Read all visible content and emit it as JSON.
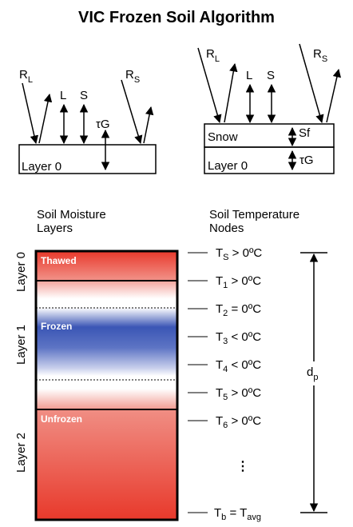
{
  "title": "VIC Frozen Soil Algorithm",
  "top_left_panel": {
    "flux_rl": {
      "base": "R",
      "sub": "L"
    },
    "flux_rs": {
      "base": "R",
      "sub": "S"
    },
    "flux_l": "L",
    "flux_s": "S",
    "flux_tg": "τG",
    "layer_label": "Layer 0"
  },
  "top_right_panel": {
    "flux_rl": {
      "base": "R",
      "sub": "L"
    },
    "flux_rs": {
      "base": "R",
      "sub": "S"
    },
    "flux_l": "L",
    "flux_s": "S",
    "snow_label": "Snow",
    "sf_label": "Sf",
    "layer_label": "Layer 0",
    "flux_tg": "τG"
  },
  "soil_column": {
    "heading_line1": "Soil Moisture",
    "heading_line2": "Layers",
    "layer_labels": [
      "Layer 0",
      "Layer 1",
      "Layer 2"
    ],
    "state_labels": [
      "Thawed",
      "Frozen",
      "Unfrozen"
    ]
  },
  "temperature_nodes": {
    "heading_line1": "Soil Temperature",
    "heading_line2": "Nodes",
    "nodes": [
      {
        "t": "T",
        "sub": "S",
        "rel": " > 0ºC"
      },
      {
        "t": "T",
        "sub": "1",
        "rel": " > 0ºC"
      },
      {
        "t": "T",
        "sub": "2",
        "rel": " = 0ºC"
      },
      {
        "t": "T",
        "sub": "3",
        "rel": " < 0ºC"
      },
      {
        "t": "T",
        "sub": "4",
        "rel": " < 0ºC"
      },
      {
        "t": "T",
        "sub": "5",
        "rel": " > 0ºC"
      },
      {
        "t": "T",
        "sub": "6",
        "rel": " > 0ºC"
      }
    ],
    "ellipsis": "⋮",
    "bottom_node": {
      "t": "T",
      "sub": "b",
      "eq": " = T",
      "sub2": "avg"
    }
  },
  "depth_label": {
    "base": "d",
    "sub": "p"
  },
  "colors": {
    "warm": "#e8392b",
    "cold": "#3b56b5",
    "stroke": "#000000",
    "state_text": "#ffffff"
  }
}
